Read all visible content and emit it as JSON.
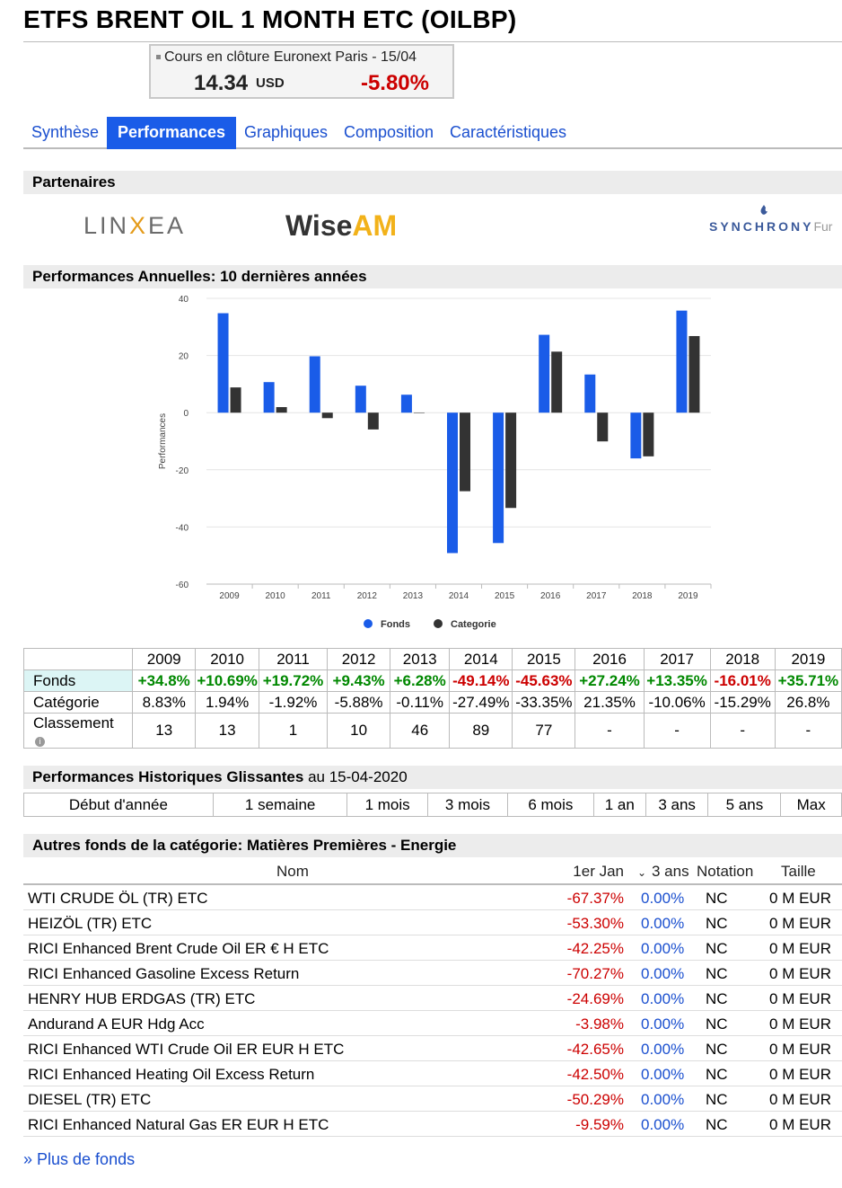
{
  "title": "ETFS BRENT OIL 1 MONTH ETC (OILBP)",
  "quote": {
    "label": "Cours en clôture Euronext Paris - 15/04",
    "price": "14.34",
    "currency": "USD",
    "change": "-5.80%",
    "change_color": "#cc0000"
  },
  "tabs": [
    "Synthèse",
    "Performances",
    "Graphiques",
    "Composition",
    "Caractéristiques"
  ],
  "active_tab": "Performances",
  "partners": {
    "title": "Partenaires",
    "linxea_pre": "LIN",
    "linxea_x": "X",
    "linxea_post": "EA",
    "wise_pre": "Wise",
    "wise_post": "AM",
    "synchrony": "SYNCHRONY",
    "synchrony_suffix": "Fur"
  },
  "annual_title": "Performances Annuelles: 10 dernières années",
  "chart_data": {
    "type": "bar",
    "categories": [
      "2009",
      "2010",
      "2011",
      "2012",
      "2013",
      "2014",
      "2015",
      "2016",
      "2017",
      "2018",
      "2019"
    ],
    "series": [
      {
        "name": "Fonds",
        "color": "#1a5ce8",
        "values": [
          34.8,
          10.69,
          19.72,
          9.43,
          6.28,
          -49.14,
          -45.63,
          27.24,
          13.35,
          -16.01,
          35.71
        ]
      },
      {
        "name": "Categorie",
        "color": "#333333",
        "values": [
          8.83,
          1.94,
          -1.92,
          -5.88,
          -0.11,
          -27.49,
          -33.35,
          21.35,
          -10.06,
          -15.29,
          26.8
        ]
      }
    ],
    "ylabel": "Performances",
    "ylim": [
      -60,
      40
    ],
    "yticks": [
      "40",
      "20",
      "0",
      "-20",
      "-40",
      "-60"
    ],
    "grid": true,
    "legend": "bottom"
  },
  "perf_table": {
    "years": [
      "2009",
      "2010",
      "2011",
      "2012",
      "2013",
      "2014",
      "2015",
      "2016",
      "2017",
      "2018",
      "2019"
    ],
    "fonds_label": "Fonds",
    "fonds": [
      "+34.8%",
      "+10.69%",
      "+19.72%",
      "+9.43%",
      "+6.28%",
      "-49.14%",
      "-45.63%",
      "+27.24%",
      "+13.35%",
      "-16.01%",
      "+35.71%"
    ],
    "categorie_label": "Catégorie",
    "categorie": [
      "8.83%",
      "1.94%",
      "-1.92%",
      "-5.88%",
      "-0.11%",
      "-27.49%",
      "-33.35%",
      "21.35%",
      "-10.06%",
      "-15.29%",
      "26.8%"
    ],
    "classement_label": "Classement",
    "classement": [
      "13",
      "13",
      "1",
      "10",
      "46",
      "89",
      "77",
      "-",
      "-",
      "-",
      "-"
    ]
  },
  "hist": {
    "title_bold": "Performances Historiques Glissantes",
    "title_rest": " au 15-04-2020",
    "columns": [
      "Début d'année",
      "1 semaine",
      "1 mois",
      "3 mois",
      "6 mois",
      "1 an",
      "3 ans",
      "5 ans",
      "Max"
    ]
  },
  "category_funds": {
    "title": "Autres fonds de la catégorie: Matières Premières - Energie",
    "headers": {
      "name": "Nom",
      "jan": "1er Jan",
      "three": "3 ans",
      "notation": "Notation",
      "size": "Taille"
    },
    "rows": [
      {
        "name": "WTI CRUDE ÖL (TR) ETC",
        "jan": "-67.37%",
        "three": "0.00%",
        "notation": "NC",
        "size": "0 M EUR"
      },
      {
        "name": "HEIZÖL (TR) ETC",
        "jan": "-53.30%",
        "three": "0.00%",
        "notation": "NC",
        "size": "0 M EUR"
      },
      {
        "name": "RICI Enhanced Brent Crude Oil ER € H ETC",
        "jan": "-42.25%",
        "three": "0.00%",
        "notation": "NC",
        "size": "0 M EUR"
      },
      {
        "name": "RICI Enhanced Gasoline Excess Return",
        "jan": "-70.27%",
        "three": "0.00%",
        "notation": "NC",
        "size": "0 M EUR"
      },
      {
        "name": "HENRY HUB ERDGAS (TR) ETC",
        "jan": "-24.69%",
        "three": "0.00%",
        "notation": "NC",
        "size": "0 M EUR"
      },
      {
        "name": "Andurand A EUR Hdg Acc",
        "jan": "-3.98%",
        "three": "0.00%",
        "notation": "NC",
        "size": "0 M EUR"
      },
      {
        "name": "RICI Enhanced WTI Crude Oil ER EUR H ETC",
        "jan": "-42.65%",
        "three": "0.00%",
        "notation": "NC",
        "size": "0 M EUR"
      },
      {
        "name": "RICI Enhanced Heating Oil Excess Return",
        "jan": "-42.50%",
        "three": "0.00%",
        "notation": "NC",
        "size": "0 M EUR"
      },
      {
        "name": "DIESEL (TR) ETC",
        "jan": "-50.29%",
        "three": "0.00%",
        "notation": "NC",
        "size": "0 M EUR"
      },
      {
        "name": "RICI Enhanced Natural Gas ER EUR H ETC",
        "jan": "-9.59%",
        "three": "0.00%",
        "notation": "NC",
        "size": "0 M EUR"
      }
    ],
    "more_link": "» Plus de fonds"
  }
}
